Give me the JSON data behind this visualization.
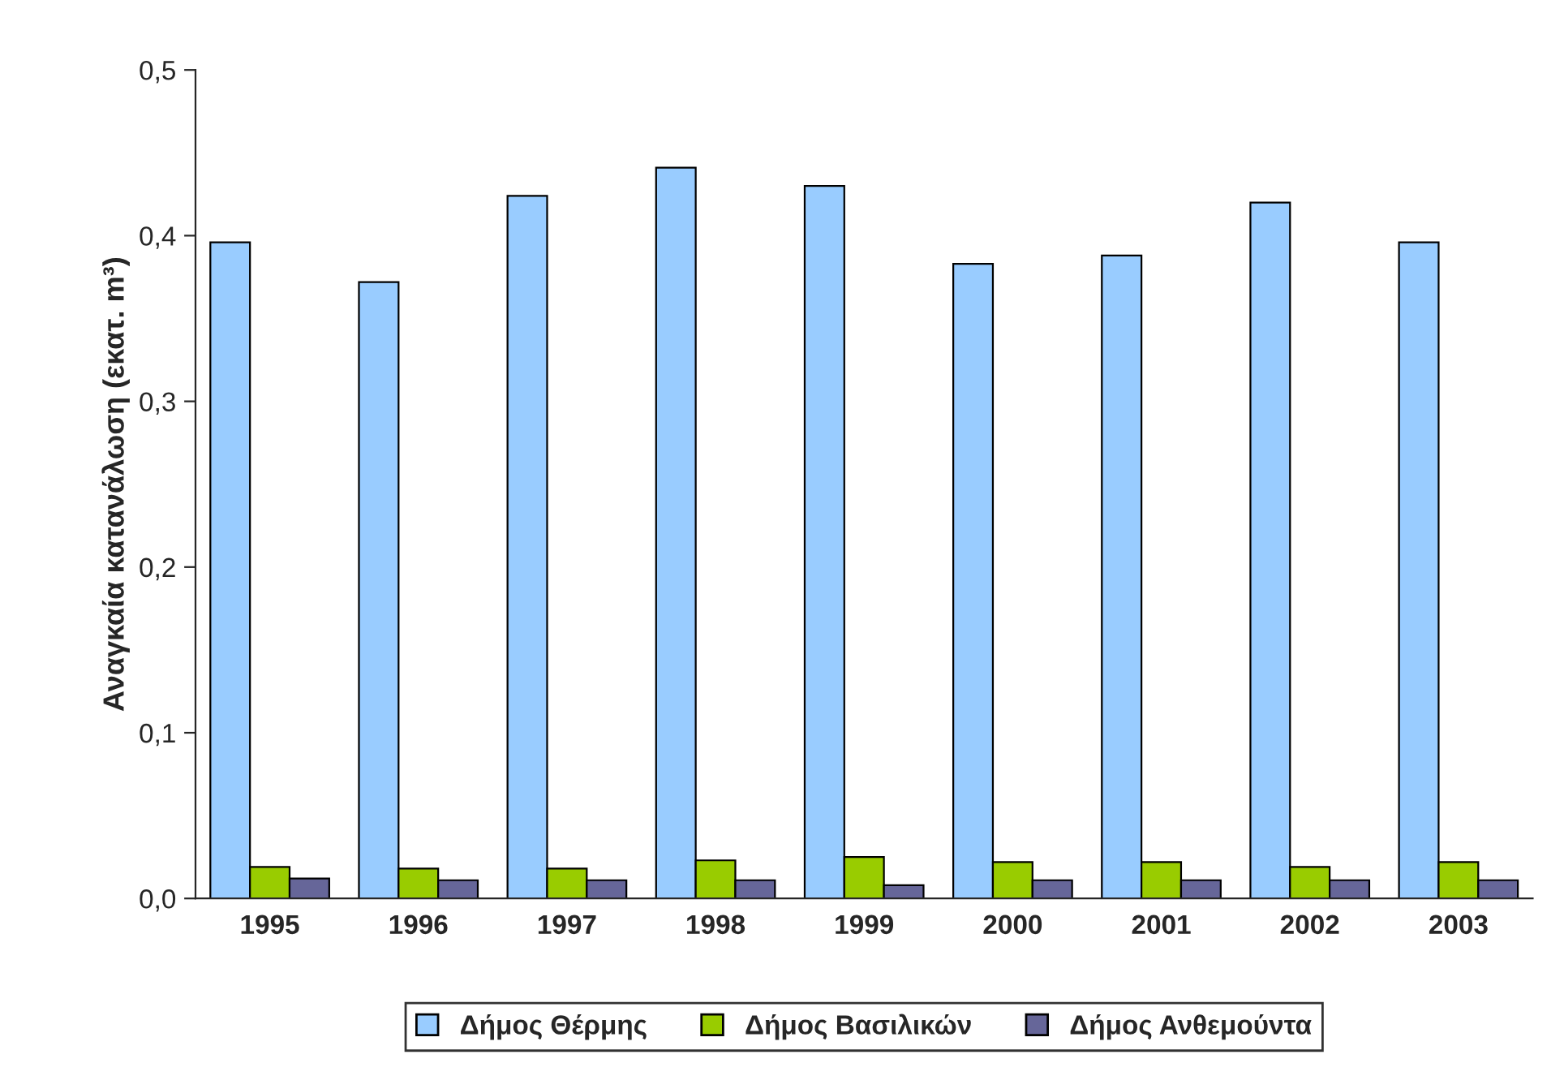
{
  "chart_data": {
    "type": "bar",
    "ylabel": "Αναγκαία κατανάλωση (εκατ. m³)",
    "categories": [
      "1995",
      "1996",
      "1997",
      "1998",
      "1999",
      "2000",
      "2001",
      "2002",
      "2003"
    ],
    "series": [
      {
        "name": "Δήμος Θέρμης",
        "color": "#99ccff",
        "values": [
          0.396,
          0.372,
          0.424,
          0.441,
          0.43,
          0.383,
          0.388,
          0.42,
          0.396
        ]
      },
      {
        "name": "Δήμος Βασιλικών",
        "color": "#99cc00",
        "values": [
          0.019,
          0.018,
          0.018,
          0.023,
          0.025,
          0.022,
          0.022,
          0.019,
          0.022
        ]
      },
      {
        "name": "Δήμος Ανθεμούντα",
        "color": "#666699",
        "values": [
          0.012,
          0.011,
          0.011,
          0.011,
          0.008,
          0.011,
          0.011,
          0.011,
          0.011
        ]
      }
    ],
    "ylim": [
      0,
      0.5
    ],
    "yticks": [
      {
        "value": 0,
        "label": "0,0"
      },
      {
        "value": 0.1,
        "label": "0,1"
      },
      {
        "value": 0.2,
        "label": "0,2"
      },
      {
        "value": 0.3,
        "label": "0,3"
      },
      {
        "value": 0.4,
        "label": "0,4"
      },
      {
        "value": 0.5,
        "label": "0,5"
      }
    ],
    "grid": false,
    "legend": "bottom"
  }
}
